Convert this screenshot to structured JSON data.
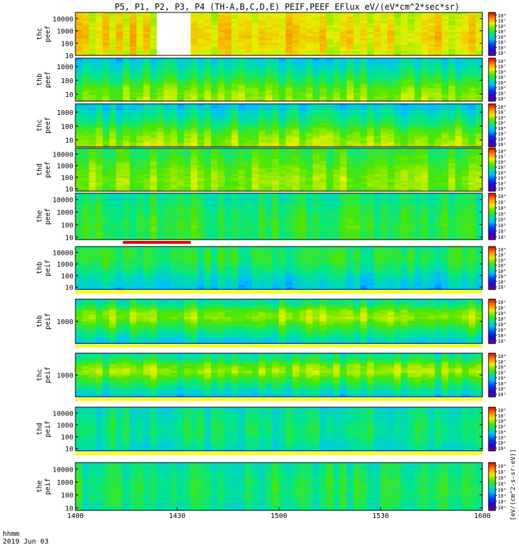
{
  "title": "P5, P1, P2, P3, P4 (TH-A,B,C,D,E) PEIF,PEEF EFlux eV/(eV*cm^2*sec*sr)",
  "footer": {
    "label_line1": "hhmm",
    "label_line2": "2019 Jun 03"
  },
  "colorbar_unit_label": "[eV/(cm^2-s-sr-eV)]",
  "colors": {
    "data_gap": "#ffffff",
    "separator": "#ffff00",
    "marker_bar": "#dd0000"
  },
  "chart_data": {
    "type": "heatmap",
    "description_units": "energy flux spectrograms, log10 EFlux",
    "x_range_hhmm": [
      "1400",
      "1600"
    ],
    "x_ticks": [
      {
        "label": "1400",
        "minutes": 0
      },
      {
        "label": "1430",
        "minutes": 30
      },
      {
        "label": "1500",
        "minutes": 60
      },
      {
        "label": "1530",
        "minutes": 90
      },
      {
        "label": "1600",
        "minutes": 120
      }
    ],
    "colorbar_ticks": [
      "10^1",
      "10^2",
      "10^3",
      "10^4",
      "10^5",
      "10^6",
      "10^7",
      "10^8"
    ],
    "colorbar_tick_labels": [
      "10¹",
      "10²",
      "10³",
      "10⁴",
      "10⁵",
      "10⁶",
      "10⁷",
      "10⁸"
    ],
    "marker": {
      "start_min": 14,
      "end_min": 34
    },
    "panels": [
      {
        "line1": "thc",
        "line2": "peef",
        "species": "electron",
        "ymin": 1,
        "ymax": 4.5,
        "yticks": [
          "10000",
          "1000",
          "100",
          "10"
        ],
        "ytick_exp": [
          4,
          3,
          2,
          1
        ],
        "level": 6.5,
        "profile": [
          0.0,
          0.3,
          0.6,
          0.7,
          0.6,
          0.4,
          0.2,
          0.0
        ],
        "gap": [
          25,
          33
        ]
      },
      {
        "line1": "thb",
        "line2": "peef",
        "species": "electron",
        "ymin": 0.5,
        "ymax": 3.6,
        "yticks": [
          "1000",
          "100",
          "10"
        ],
        "ytick_exp": [
          3,
          2,
          1
        ],
        "level": 5.2,
        "profile": [
          2.0,
          1.6,
          1.2,
          0.4,
          -0.5,
          -1.2,
          -1.8,
          -2.4
        ]
      },
      {
        "line1": "thc",
        "line2": "peef",
        "species": "electron",
        "ymin": 0.5,
        "ymax": 3.6,
        "yticks": [
          "1000",
          "100",
          "10"
        ],
        "ytick_exp": [
          3,
          2,
          1
        ],
        "level": 5.2,
        "profile": [
          2.2,
          1.8,
          1.3,
          0.4,
          -0.5,
          -1.3,
          -2.0,
          -2.6
        ]
      },
      {
        "line1": "thd",
        "line2": "peef",
        "species": "electron",
        "ymin": 0.8,
        "ymax": 4.5,
        "yticks": [
          "10000",
          "1000",
          "100",
          "10"
        ],
        "ytick_exp": [
          4,
          3,
          2,
          1
        ],
        "level": 5.6,
        "profile": [
          0.5,
          0.8,
          0.9,
          0.6,
          0.2,
          -0.2,
          -0.6,
          -1.0
        ]
      },
      {
        "line1": "the",
        "line2": "peef",
        "species": "electron",
        "ymin": 0.8,
        "ymax": 4.5,
        "yticks": [
          "10000",
          "1000",
          "100",
          "10"
        ],
        "ytick_exp": [
          4,
          3,
          2,
          1
        ],
        "level": 5.0,
        "profile": [
          0.3,
          0.5,
          0.6,
          0.5,
          0.3,
          0.0,
          -0.3,
          -0.6
        ]
      },
      {
        "line1": "thb",
        "line2": "peif",
        "species": "ion",
        "ymin": 0.8,
        "ymax": 4.5,
        "yticks": [
          "10000",
          "1000",
          "100",
          "10"
        ],
        "ytick_exp": [
          4,
          3,
          2,
          1
        ],
        "level": 4.8,
        "profile": [
          -1.8,
          -1.4,
          -0.9,
          -0.2,
          0.4,
          0.8,
          0.7,
          0.2
        ]
      },
      {
        "line1": "thb",
        "line2": "peif",
        "species": "ion",
        "ymin": 1.8,
        "ymax": 4.2,
        "yticks": [
          "1000"
        ],
        "ytick_exp": [
          3
        ],
        "level": 5.2,
        "profile": [
          -2.2,
          -1.4,
          -0.3,
          0.8,
          2.0,
          1.6,
          -0.2,
          -1.6
        ]
      },
      {
        "line1": "thc",
        "line2": "peif",
        "species": "ion",
        "ymin": 1.8,
        "ymax": 4.2,
        "yticks": [
          "1000"
        ],
        "ytick_exp": [
          3
        ],
        "level": 5.2,
        "profile": [
          -2.4,
          -1.6,
          -0.4,
          0.6,
          2.1,
          1.2,
          -0.4,
          -1.6
        ]
      },
      {
        "line1": "thd",
        "line2": "peif",
        "species": "ion",
        "ymin": 0.8,
        "ymax": 4.5,
        "yticks": [
          "10000",
          "1000",
          "100",
          "10"
        ],
        "ytick_exp": [
          4,
          3,
          2,
          1
        ],
        "level": 4.6,
        "profile": [
          -0.4,
          -0.1,
          0.3,
          0.5,
          0.5,
          0.3,
          0.0,
          -0.3
        ]
      },
      {
        "line1": "the",
        "line2": "peif",
        "species": "ion",
        "ymin": 0.8,
        "ymax": 4.5,
        "yticks": [
          "10000",
          "1000",
          "100",
          "10"
        ],
        "ytick_exp": [
          4,
          3,
          2,
          1
        ],
        "level": 4.8,
        "profile": [
          -0.2,
          0.1,
          0.4,
          0.5,
          0.4,
          0.2,
          0.0,
          -0.2
        ]
      }
    ]
  }
}
